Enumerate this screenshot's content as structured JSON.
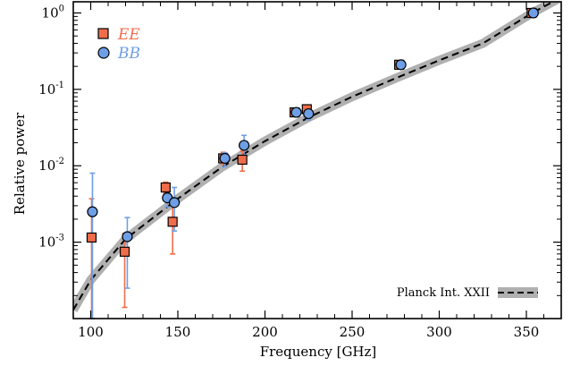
{
  "chart_data": {
    "type": "scatter",
    "xlabel": "Frequency [GHz]",
    "ylabel": "Relative power",
    "xlim": [
      90,
      370
    ],
    "ylim": [
      0.0001,
      1.4
    ],
    "y_scale": "log",
    "x_ticks": [
      100,
      150,
      200,
      250,
      300,
      350
    ],
    "x_tick_labels": [
      "100",
      "150",
      "200",
      "250",
      "300",
      "350"
    ],
    "y_ticks": [
      {
        "base": "10",
        "exp": "-3",
        "value": 0.001
      },
      {
        "base": "10",
        "exp": "-2",
        "value": 0.01
      },
      {
        "base": "10",
        "exp": "-1",
        "value": 0.1
      },
      {
        "base": "10",
        "exp": "0",
        "value": 1
      }
    ],
    "series": [
      {
        "name": "EE",
        "color": "#f06d4b",
        "marker": "square",
        "points": [
          {
            "x": 100.5,
            "y": 0.00115,
            "lo": 0.0001,
            "hi": 0.0037
          },
          {
            "x": 119.5,
            "y": 0.00075,
            "lo": 0.00014,
            "hi": 0.0013
          },
          {
            "x": 143,
            "y": 0.0052,
            "lo": 0.0044,
            "hi": 0.0061
          },
          {
            "x": 147,
            "y": 0.00185,
            "lo": 0.0007,
            "hi": 0.0032
          },
          {
            "x": 176,
            "y": 0.0125,
            "lo": 0.0105,
            "hi": 0.015
          },
          {
            "x": 187,
            "y": 0.012,
            "lo": 0.0085,
            "hi": 0.0155
          },
          {
            "x": 217,
            "y": 0.05,
            "lo": 0.045,
            "hi": 0.055
          },
          {
            "x": 224,
            "y": 0.055,
            "lo": 0.048,
            "hi": 0.062
          },
          {
            "x": 277,
            "y": 0.21,
            "lo": 0.2,
            "hi": 0.22
          },
          {
            "x": 353,
            "y": 1.0,
            "lo": 0.97,
            "hi": 1.03
          }
        ]
      },
      {
        "name": "BB",
        "color": "#6e9fe6",
        "marker": "circle",
        "points": [
          {
            "x": 101,
            "y": 0.0025,
            "lo": 0.0001,
            "hi": 0.008
          },
          {
            "x": 121,
            "y": 0.00118,
            "lo": 0.00025,
            "hi": 0.0021
          },
          {
            "x": 144,
            "y": 0.0038,
            "lo": 0.0029,
            "hi": 0.0045
          },
          {
            "x": 148,
            "y": 0.0033,
            "lo": 0.0014,
            "hi": 0.0052
          },
          {
            "x": 177,
            "y": 0.0125,
            "lo": 0.0098,
            "hi": 0.0148
          },
          {
            "x": 188,
            "y": 0.0185,
            "lo": 0.0135,
            "hi": 0.025
          },
          {
            "x": 218,
            "y": 0.05,
            "lo": 0.046,
            "hi": 0.054
          },
          {
            "x": 225,
            "y": 0.048,
            "lo": 0.04,
            "hi": 0.056
          },
          {
            "x": 278,
            "y": 0.21,
            "lo": 0.2,
            "hi": 0.22
          },
          {
            "x": 354,
            "y": 1.0,
            "lo": 0.97,
            "hi": 1.03
          }
        ]
      },
      {
        "name": "Planck Int. XXII",
        "style": "dashed line with grey uncertainty band",
        "color": "#000000",
        "band_color": "#b0b0b0",
        "x": [
          90,
          100,
          120,
          150,
          175,
          200,
          225,
          250,
          275,
          300,
          325,
          353,
          370
        ],
        "y": [
          0.00013,
          0.00032,
          0.0011,
          0.0037,
          0.0095,
          0.021,
          0.043,
          0.08,
          0.14,
          0.24,
          0.4,
          0.99,
          1.6
        ]
      }
    ],
    "legend": {
      "position": "top-left",
      "entries": [
        {
          "label": "EE",
          "color": "#f06d4b",
          "marker": "square"
        },
        {
          "label": "BB",
          "color": "#6e9fe6",
          "marker": "circle"
        }
      ]
    },
    "annotation": {
      "text": "Planck Int. XXII",
      "position": "bottom-right"
    }
  }
}
